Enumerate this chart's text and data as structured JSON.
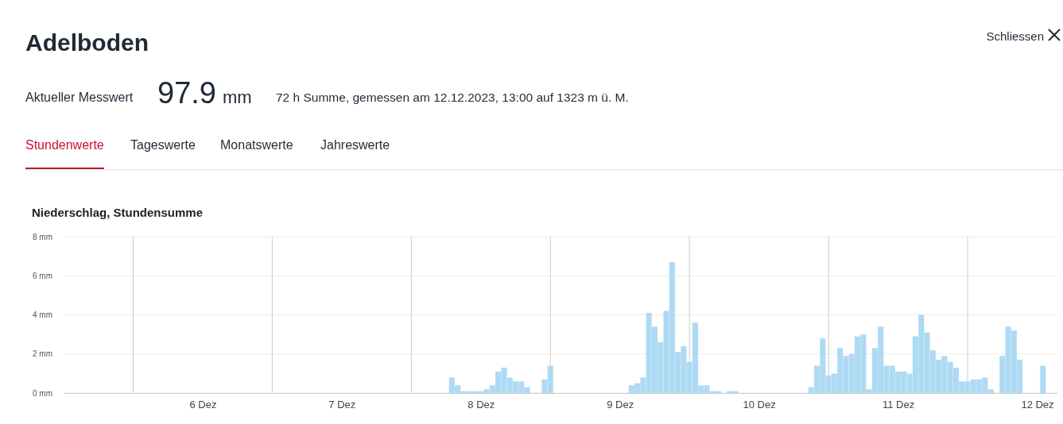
{
  "chart_data": {
    "type": "bar",
    "title": "Niederschlag, Stundensumme",
    "annotations": [
      "Adelboden",
      "Aktueller Messwert",
      "97.9",
      "mm",
      "72 h Summe, gemessen am 12.12.2023, 13:00 auf 1323 m ü. M.",
      "Stundenwerte",
      "Tageswerte",
      "Monatswerte",
      "Jahreswerte",
      "Schliessen"
    ],
    "x": [
      "2023-12-08T07:00",
      "2023-12-08T08:00",
      "2023-12-08T09:00",
      "2023-12-08T10:00",
      "2023-12-08T11:00",
      "2023-12-08T12:00",
      "2023-12-08T13:00",
      "2023-12-08T14:00",
      "2023-12-08T15:00",
      "2023-12-08T16:00",
      "2023-12-08T17:00",
      "2023-12-08T18:00",
      "2023-12-08T19:00",
      "2023-12-08T20:00",
      "2023-12-08T23:00",
      "2023-12-09T00:00",
      "2023-12-09T14:00",
      "2023-12-09T15:00",
      "2023-12-09T16:00",
      "2023-12-09T17:00",
      "2023-12-09T18:00",
      "2023-12-09T19:00",
      "2023-12-09T20:00",
      "2023-12-09T21:00",
      "2023-12-09T22:00",
      "2023-12-09T23:00",
      "2023-12-10T00:00",
      "2023-12-10T01:00",
      "2023-12-10T02:00",
      "2023-12-10T03:00",
      "2023-12-10T04:00",
      "2023-12-10T05:00",
      "2023-12-10T07:00",
      "2023-12-10T08:00",
      "2023-12-10T21:00",
      "2023-12-10T22:00",
      "2023-12-10T23:00",
      "2023-12-11T00:00",
      "2023-12-11T01:00",
      "2023-12-11T02:00",
      "2023-12-11T03:00",
      "2023-12-11T04:00",
      "2023-12-11T05:00",
      "2023-12-11T06:00",
      "2023-12-11T07:00",
      "2023-12-11T08:00",
      "2023-12-11T09:00",
      "2023-12-11T10:00",
      "2023-12-11T11:00",
      "2023-12-11T12:00",
      "2023-12-11T13:00",
      "2023-12-11T14:00",
      "2023-12-11T15:00",
      "2023-12-11T16:00",
      "2023-12-11T17:00",
      "2023-12-11T18:00",
      "2023-12-11T19:00",
      "2023-12-11T20:00",
      "2023-12-11T21:00",
      "2023-12-11T22:00",
      "2023-12-11T23:00",
      "2023-12-12T00:00",
      "2023-12-12T01:00",
      "2023-12-12T02:00",
      "2023-12-12T03:00",
      "2023-12-12T04:00",
      "2023-12-12T06:00",
      "2023-12-12T07:00",
      "2023-12-12T08:00",
      "2023-12-12T09:00",
      "2023-12-12T13:00"
    ],
    "values": [
      0.8,
      0.4,
      0.1,
      0.1,
      0.1,
      0.1,
      0.2,
      0.4,
      1.1,
      1.3,
      0.8,
      0.6,
      0.6,
      0.3,
      0.7,
      1.4,
      0.4,
      0.5,
      0.8,
      4.1,
      3.4,
      2.6,
      4.2,
      6.7,
      2.1,
      2.4,
      1.6,
      3.6,
      0.4,
      0.4,
      0.1,
      0.1,
      0.1,
      0.1,
      0.3,
      1.4,
      2.8,
      0.9,
      1.0,
      2.3,
      1.9,
      2.0,
      2.9,
      3.0,
      0.2,
      2.3,
      3.4,
      1.4,
      1.4,
      1.1,
      1.1,
      1.0,
      2.9,
      4.0,
      3.1,
      2.2,
      1.7,
      1.9,
      1.6,
      1.3,
      0.6,
      0.6,
      0.7,
      0.7,
      0.8,
      0.2,
      1.9,
      3.4,
      3.2,
      1.7,
      1.4
    ],
    "color": "#aad9f4",
    "xlim": [
      "2023-12-05T12:00",
      "2023-12-12T15:30"
    ],
    "xticks": [
      {
        "value": "2023-12-06T12:00",
        "label": "6 Dez"
      },
      {
        "value": "2023-12-07T12:00",
        "label": "7 Dez"
      },
      {
        "value": "2023-12-08T12:00",
        "label": "8 Dez"
      },
      {
        "value": "2023-12-09T12:00",
        "label": "9 Dez"
      },
      {
        "value": "2023-12-10T12:00",
        "label": "10 Dez"
      },
      {
        "value": "2023-12-11T12:00",
        "label": "11 Dez"
      },
      {
        "value": "2023-12-12T12:00",
        "label": "12 Dez"
      }
    ],
    "ylim": [
      0,
      8
    ],
    "yticks": [
      {
        "value": 0,
        "label": "0 mm"
      },
      {
        "value": 2,
        "label": "2 mm"
      },
      {
        "value": 4,
        "label": "4 mm"
      },
      {
        "value": 6,
        "label": "6 mm"
      },
      {
        "value": 8,
        "label": "8 mm"
      }
    ],
    "grid": "y",
    "ref_lines": [
      {
        "axis": "x",
        "value": "2023-12-06T00:00",
        "color": "#cccccc"
      },
      {
        "axis": "x",
        "value": "2023-12-07T00:00",
        "color": "#cccccc"
      },
      {
        "axis": "x",
        "value": "2023-12-08T00:00",
        "color": "#cccccc"
      },
      {
        "axis": "x",
        "value": "2023-12-09T00:00",
        "color": "#cccccc"
      },
      {
        "axis": "x",
        "value": "2023-12-10T00:00",
        "color": "#cccccc"
      },
      {
        "axis": "x",
        "value": "2023-12-11T00:00",
        "color": "#cccccc"
      },
      {
        "axis": "x",
        "value": "2023-12-12T00:00",
        "color": "#cccccc"
      }
    ]
  }
}
